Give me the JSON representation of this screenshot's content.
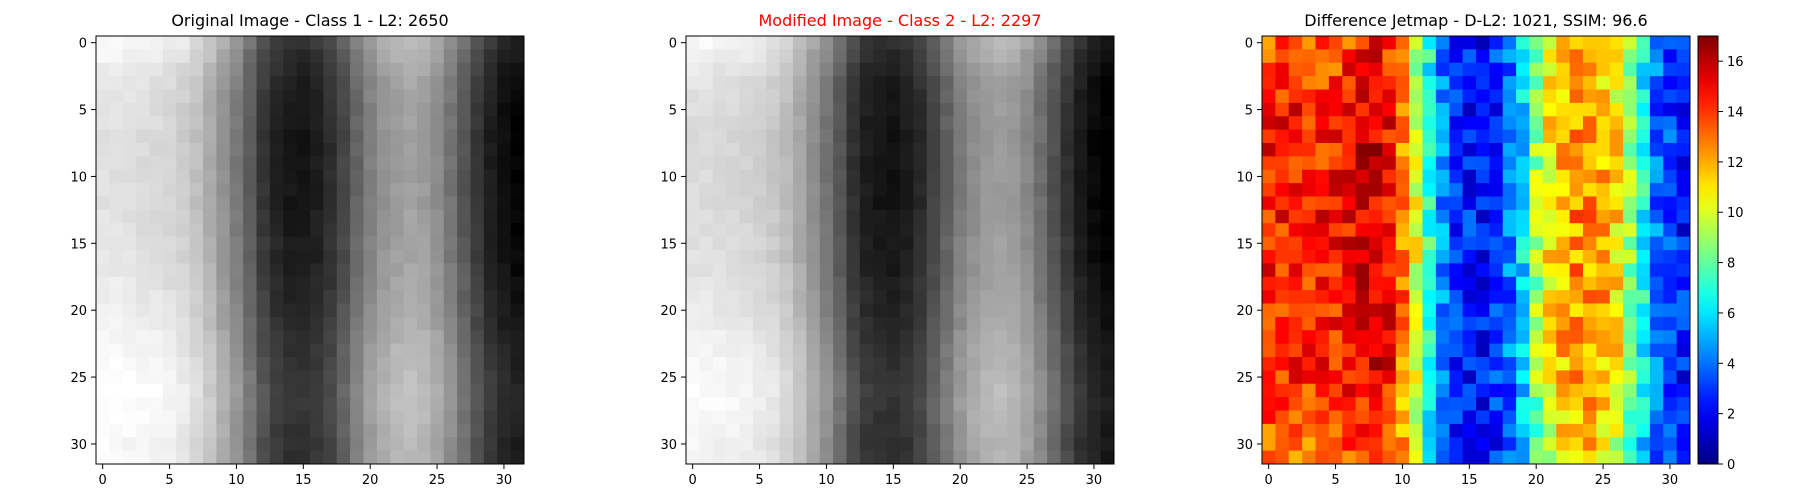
{
  "chart_data": [
    {
      "type": "heatmap",
      "title": "Original Image - Class 1 - L2: 2650",
      "title_color": "#000000",
      "colormap": "gray",
      "grid_size": [
        32,
        32
      ],
      "xlim": [
        -0.5,
        31.5
      ],
      "ylim": [
        31.5,
        -0.5
      ],
      "xticks": [
        0,
        5,
        10,
        15,
        20,
        25,
        30
      ],
      "yticks": [
        0,
        5,
        10,
        15,
        20,
        25,
        30
      ],
      "column_profile": [
        0.93,
        0.93,
        0.92,
        0.91,
        0.9,
        0.88,
        0.85,
        0.8,
        0.72,
        0.62,
        0.52,
        0.4,
        0.26,
        0.18,
        0.14,
        0.13,
        0.16,
        0.22,
        0.32,
        0.44,
        0.55,
        0.62,
        0.66,
        0.68,
        0.66,
        0.6,
        0.5,
        0.38,
        0.26,
        0.16,
        0.1,
        0.06
      ],
      "row_profile": [
        0.06,
        0.03,
        0.0,
        -0.02,
        -0.03,
        -0.04,
        -0.04,
        -0.05,
        -0.05,
        -0.05,
        -0.05,
        -0.05,
        -0.05,
        -0.04,
        -0.04,
        -0.03,
        -0.03,
        -0.02,
        -0.01,
        0.0,
        0.01,
        0.02,
        0.04,
        0.05,
        0.06,
        0.07,
        0.08,
        0.08,
        0.07,
        0.06,
        0.05,
        0.05
      ]
    },
    {
      "type": "heatmap",
      "title": "Modified Image - Class 2 - L2: 2297",
      "title_color": "#ff0000",
      "colormap": "gray",
      "grid_size": [
        32,
        32
      ],
      "xlim": [
        -0.5,
        31.5
      ],
      "ylim": [
        31.5,
        -0.5
      ],
      "xticks": [
        0,
        5,
        10,
        15,
        20,
        25,
        30
      ],
      "yticks": [
        0,
        5,
        10,
        15,
        20,
        25,
        30
      ],
      "column_profile": [
        0.91,
        0.91,
        0.9,
        0.89,
        0.88,
        0.86,
        0.83,
        0.78,
        0.7,
        0.6,
        0.5,
        0.38,
        0.24,
        0.16,
        0.13,
        0.12,
        0.15,
        0.21,
        0.31,
        0.42,
        0.53,
        0.6,
        0.64,
        0.66,
        0.64,
        0.58,
        0.48,
        0.36,
        0.24,
        0.14,
        0.08,
        0.04
      ],
      "row_profile": [
        0.06,
        0.03,
        0.0,
        -0.02,
        -0.03,
        -0.04,
        -0.04,
        -0.05,
        -0.05,
        -0.05,
        -0.05,
        -0.05,
        -0.05,
        -0.04,
        -0.04,
        -0.03,
        -0.03,
        -0.02,
        -0.01,
        0.0,
        0.01,
        0.02,
        0.04,
        0.05,
        0.06,
        0.07,
        0.08,
        0.08,
        0.07,
        0.06,
        0.05,
        0.05
      ]
    },
    {
      "type": "heatmap",
      "title": "Difference Jetmap - D-L2: 1021, SSIM: 96.6",
      "title_color": "#000000",
      "colormap": "jet",
      "grid_size": [
        32,
        32
      ],
      "xlim": [
        -0.5,
        31.5
      ],
      "ylim": [
        31.5,
        -0.5
      ],
      "xticks": [
        0,
        5,
        10,
        15,
        20,
        25,
        30
      ],
      "yticks": [
        0,
        5,
        10,
        15,
        20,
        25,
        30
      ],
      "value_range": [
        0,
        17
      ],
      "column_profile": [
        14.5,
        14.5,
        14.5,
        14.5,
        14.5,
        14.5,
        15,
        15.5,
        15.5,
        15,
        13,
        10,
        7,
        4.5,
        3,
        2.5,
        2.5,
        3,
        4,
        6,
        9,
        11,
        12,
        12.5,
        12.5,
        12,
        11,
        9,
        6.5,
        4,
        3,
        2.5
      ],
      "row_profile": [
        0.5,
        0.4,
        0.3,
        0.2,
        0.1,
        0.0,
        0.0,
        0.0,
        0.0,
        0.0,
        0.0,
        0.0,
        0.0,
        0.0,
        0.0,
        0.0,
        0.0,
        0.0,
        0.0,
        0.0,
        0.0,
        0.0,
        0.0,
        0.0,
        0.1,
        0.2,
        0.3,
        0.4,
        0.5,
        0.6,
        0.6,
        0.6
      ],
      "colorbar": {
        "ticks": [
          0,
          2,
          4,
          6,
          8,
          10,
          12,
          14,
          16
        ],
        "min": 0,
        "max": 17
      }
    }
  ]
}
